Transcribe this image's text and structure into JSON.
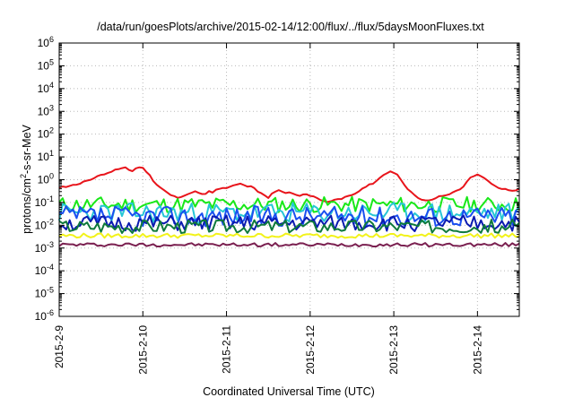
{
  "chart_data": {
    "type": "line",
    "title": "/data/run/goesPlots/archive/2015-02-14/12:00/flux/../flux/5daysMoonFluxes.txt",
    "xlabel": "Coordinated Universal Time (UTC)",
    "ylabel": "protons/cm²-s-sr-MeV",
    "ylabel_parts": {
      "pre": "protons/cm",
      "sup": "2",
      "post": "-s-sr-MeV"
    },
    "yscale": "log",
    "ylim": [
      1e-06,
      1000000.0
    ],
    "y_tick_mantissa": "10",
    "y_tick_exponents": [
      "-6",
      "-5",
      "-4",
      "-3",
      "-2",
      "-1",
      "0",
      "1",
      "2",
      "3",
      "4",
      "5",
      "6"
    ],
    "xlim": [
      "2015-02-09",
      "2015-02-14 12:00"
    ],
    "x_ticks": [
      "2015-2-9",
      "2015-2-10",
      "2015-2-11",
      "2015-2-12",
      "2015-2-13",
      "2015-2-14"
    ],
    "grid": true,
    "legend": "none",
    "x_start": "2015-02-09",
    "x_step_hours": 1,
    "series": [
      {
        "color": "#e8141b",
        "base": [
          0.45,
          0.5,
          0.5,
          0.55,
          0.6,
          0.6,
          0.7,
          0.8,
          0.9,
          1.0,
          1.2,
          1.4,
          1.6,
          1.8,
          2.0,
          2.3,
          2.7,
          3.0,
          3.2,
          3.5,
          2.8,
          2.5,
          3.0,
          3.3,
          3.5,
          2.2,
          1.5,
          0.9,
          0.6,
          0.45,
          0.35,
          0.28,
          0.22,
          0.18,
          0.16,
          0.18,
          0.2,
          0.24,
          0.28,
          0.3,
          0.27,
          0.24,
          0.25,
          0.3,
          0.28,
          0.35,
          0.4,
          0.45,
          0.42,
          0.5,
          0.55,
          0.6,
          0.7,
          0.6,
          0.5,
          0.55,
          0.45,
          0.3,
          0.25,
          0.2,
          0.15,
          0.25,
          0.3,
          0.35,
          0.3,
          0.25,
          0.28,
          0.25,
          0.22,
          0.2,
          0.22,
          0.24,
          0.2,
          0.18,
          0.15,
          0.12,
          0.11,
          0.1,
          0.11,
          0.13,
          0.14,
          0.15,
          0.18,
          0.2,
          0.22,
          0.25,
          0.3,
          0.4,
          0.5,
          0.6,
          0.7,
          0.9,
          1.2,
          1.6,
          2.0,
          2.2,
          2.0,
          1.6,
          1.0,
          0.6,
          0.4,
          0.28,
          0.2,
          0.16,
          0.14,
          0.13,
          0.12,
          0.13,
          0.15,
          0.18,
          0.2,
          0.2,
          0.24,
          0.3,
          0.35,
          0.4,
          0.5,
          0.8,
          1.2,
          1.5,
          1.7,
          1.5,
          1.2,
          0.9,
          0.7,
          0.55,
          0.45,
          0.4,
          0.38,
          0.36,
          0.34,
          0.36,
          0.4,
          0.45,
          0.5,
          0.55,
          0.6,
          0.65,
          0.7,
          0.8
        ],
        "base_step_hours": 1
      },
      {
        "color": "#18e818",
        "center": 0.08,
        "amp": 0.35,
        "seed": 11
      },
      {
        "color": "#26c6d6",
        "center": 0.035,
        "amp": 0.45,
        "seed": 23
      },
      {
        "color": "#1a4ff0",
        "center": 0.025,
        "amp": 0.45,
        "seed": 37
      },
      {
        "color": "#0a1ab0",
        "center": 0.012,
        "amp": 0.35,
        "seed": 51
      },
      {
        "color": "#0f7a3c",
        "center": 0.009,
        "amp": 0.3,
        "seed": 67
      },
      {
        "color": "#f2f21a",
        "center": 0.0035,
        "amp": 0.1,
        "seed": 79
      },
      {
        "color": "#7a2050",
        "center": 0.0014,
        "amp": 0.08,
        "seed": 97
      }
    ]
  }
}
